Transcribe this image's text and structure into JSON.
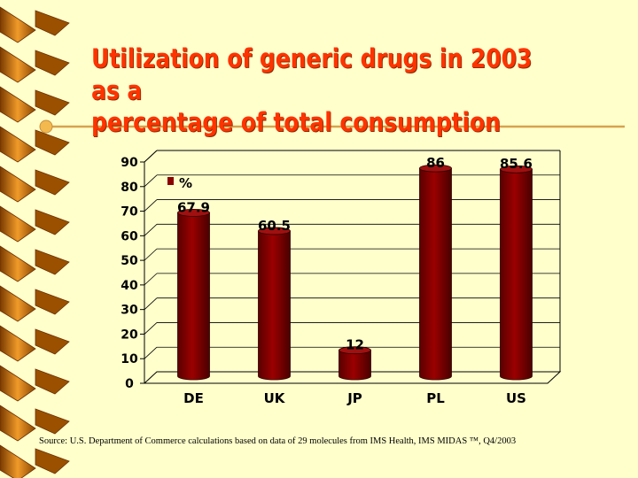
{
  "slide": {
    "title_line1": "Utilization of generic drugs in 2003 as a",
    "title_line2": "percentage of total consumption",
    "source": "Source: U.S. Department of Commerce calculations based on data of 29 molecules from IMS Health, IMS MIDAS ™, Q4/2003"
  },
  "colors": {
    "background": "#FFFFCC",
    "title": "#FF3300",
    "bar": "#8B0000",
    "spiral": "#C86400"
  },
  "chart_data": {
    "type": "bar",
    "categories": [
      "DE",
      "UK",
      "JP",
      "PL",
      "US"
    ],
    "values": [
      67.9,
      60.5,
      12,
      86,
      85.6
    ],
    "value_labels": [
      "67.9",
      "60.5",
      "12",
      "86",
      "85.6"
    ],
    "legend": "%",
    "legend_position": "top-left",
    "ylim": [
      0,
      90
    ],
    "yticks": [
      "0",
      "10",
      "20",
      "30",
      "40",
      "50",
      "60",
      "70",
      "80",
      "90"
    ],
    "grid": true,
    "style": "3d-cylinder"
  }
}
